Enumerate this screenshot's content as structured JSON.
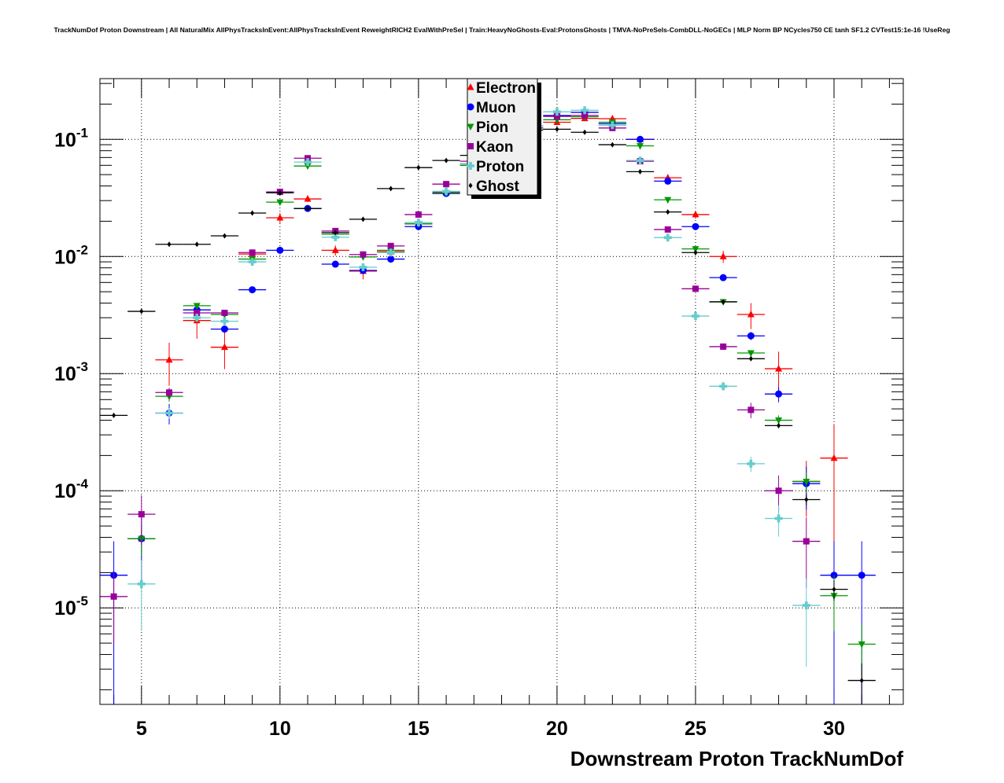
{
  "chart_data": {
    "type": "scatter",
    "title": "TrackNumDof Proton Downstream | All NaturalMix AllPhysTracksInEvent:AllPhysTracksInEvent ReweightRICH2 EvalWithPreSel | Train:HeavyNoGhosts-Eval:ProtonsGhosts | TMVA-NoPreSels-CombDLL-NoGECs | MLP Norm BP NCycles750 CE tanh SF1.2 CVTest15:1e-16 !UseReg",
    "xlabel": "Downstream Proton TrackNumDof",
    "ylabel": "",
    "xlim": [
      3.5,
      32.5
    ],
    "ylim": [
      1.5e-06,
      0.33
    ],
    "yscale": "log",
    "grid": true,
    "legend_placement": "top-center",
    "xticks": [
      {
        "value": 5,
        "label": "5"
      },
      {
        "value": 10,
        "label": "10"
      },
      {
        "value": 15,
        "label": "15"
      },
      {
        "value": 20,
        "label": "20"
      },
      {
        "value": 25,
        "label": "25"
      },
      {
        "value": 30,
        "label": "30"
      }
    ],
    "yticks": [
      {
        "value": 0.1,
        "base": "10",
        "exp": "-1"
      },
      {
        "value": 0.01,
        "base": "10",
        "exp": "-2"
      },
      {
        "value": 0.001,
        "base": "10",
        "exp": "-3"
      },
      {
        "value": 0.0001,
        "base": "10",
        "exp": "-4"
      },
      {
        "value": 1e-05,
        "base": "10",
        "exp": "-5"
      }
    ],
    "x": [
      4,
      5,
      6,
      7,
      8,
      9,
      10,
      11,
      12,
      13,
      14,
      15,
      16,
      17,
      18,
      19,
      20,
      21,
      22,
      23,
      24,
      25,
      26,
      27,
      28,
      29,
      30,
      31
    ],
    "series": [
      {
        "name": "Electron",
        "color": "#ff0000",
        "marker": "triangle-up",
        "values": [
          null,
          3.9e-05,
          0.00131,
          0.00284,
          0.00168,
          0.0105,
          0.0214,
          0.031,
          0.0113,
          0.0075,
          0.011,
          0.019,
          0.0355,
          0.062,
          0.09,
          0.125,
          0.14,
          0.151,
          0.15,
          0.1,
          0.047,
          0.0228,
          0.01,
          0.0032,
          0.0011,
          0.00012,
          0.00019,
          null
        ],
        "rel_err": [
          0,
          0,
          0.4,
          0.3,
          0.35,
          0.08,
          0.1,
          0.06,
          0.1,
          0.15,
          0.08,
          0.05,
          0.04,
          0.03,
          0.02,
          0.02,
          0.02,
          0.02,
          0.02,
          0.03,
          0.06,
          0.08,
          0.12,
          0.25,
          0.4,
          0.5,
          0.95,
          0
        ]
      },
      {
        "name": "Muon",
        "color": "#0000ff",
        "marker": "circle",
        "values": [
          1.9e-05,
          3.9e-05,
          0.00046,
          0.0035,
          0.0024,
          0.0052,
          0.0113,
          0.0257,
          0.0086,
          0.0076,
          0.0095,
          0.018,
          0.0345,
          0.06,
          0.09,
          0.13,
          0.16,
          0.17,
          0.136,
          0.1,
          0.044,
          0.018,
          0.0066,
          0.0021,
          0.00067,
          0.000115,
          1.9e-05,
          1.9e-05
        ],
        "rel_err": [
          0.95,
          0.6,
          0.2,
          0.05,
          0.06,
          0.04,
          0.03,
          0.02,
          0.03,
          0.03,
          0.03,
          0.02,
          0.02,
          0.01,
          0.01,
          0.01,
          0.01,
          0.01,
          0.01,
          0.01,
          0.02,
          0.03,
          0.05,
          0.08,
          0.15,
          0.4,
          0.95,
          0.95
        ]
      },
      {
        "name": "Pion",
        "color": "#009900",
        "marker": "triangle-down",
        "values": [
          null,
          3.9e-05,
          0.00064,
          0.0038,
          0.0032,
          0.0095,
          0.0291,
          0.0592,
          0.0155,
          0.0099,
          0.0113,
          0.019,
          0.035,
          0.06,
          0.09,
          0.13,
          0.147,
          0.156,
          0.14,
          0.088,
          0.0305,
          0.0116,
          0.0041,
          0.0015,
          0.0004,
          0.00012,
          1.27e-05,
          4.9e-06
        ],
        "rel_err": [
          0,
          0.3,
          0.1,
          0.03,
          0.03,
          0.02,
          0.01,
          0.01,
          0.02,
          0.02,
          0.02,
          0.01,
          0.01,
          0.01,
          0.01,
          0.01,
          0.01,
          0.01,
          0.01,
          0.01,
          0.01,
          0.02,
          0.03,
          0.05,
          0.1,
          0.2,
          0.5,
          0.5
        ]
      },
      {
        "name": "Kaon",
        "color": "#990099",
        "marker": "square",
        "values": [
          1.25e-05,
          6.3e-05,
          0.00069,
          0.0033,
          0.0033,
          0.0108,
          0.0356,
          0.069,
          0.0165,
          0.0104,
          0.0123,
          0.0228,
          0.0415,
          0.065,
          0.085,
          0.125,
          0.157,
          0.16,
          0.125,
          0.065,
          0.017,
          0.0053,
          0.0017,
          0.00049,
          0.0001,
          3.7e-05,
          null,
          null
        ],
        "rel_err": [
          0.6,
          0.45,
          0.1,
          0.04,
          0.04,
          0.03,
          0.02,
          0.01,
          0.02,
          0.02,
          0.02,
          0.02,
          0.01,
          0.01,
          0.01,
          0.01,
          0.01,
          0.01,
          0.01,
          0.01,
          0.02,
          0.04,
          0.06,
          0.15,
          0.35,
          0.6,
          0,
          0
        ]
      },
      {
        "name": "Proton",
        "color": "#66cccc",
        "marker": "cross",
        "values": [
          null,
          1.6e-05,
          0.00046,
          0.003,
          0.0028,
          0.009,
          null,
          0.064,
          0.0146,
          0.0081,
          0.0108,
          0.0195,
          0.036,
          0.062,
          0.09,
          0.13,
          0.172,
          0.177,
          0.132,
          0.066,
          0.0145,
          0.0031,
          0.00078,
          0.00017,
          5.8e-05,
          1.05e-05,
          null,
          null
        ],
        "rel_err": [
          0,
          0.6,
          0.1,
          0.03,
          0.03,
          0.02,
          0,
          0.01,
          0.02,
          0.02,
          0.02,
          0.01,
          0.01,
          0.01,
          0.01,
          0.01,
          0.01,
          0.01,
          0.01,
          0.01,
          0.02,
          0.04,
          0.08,
          0.15,
          0.3,
          0.7,
          0,
          0
        ]
      },
      {
        "name": "Ghost",
        "color": "#000000",
        "marker": "diamond",
        "values": [
          0.00044,
          0.0034,
          0.0127,
          0.0127,
          0.015,
          0.0235,
          0.035,
          0.0257,
          0.016,
          0.0208,
          0.038,
          0.0574,
          0.066,
          0.073,
          0.085,
          0.12,
          0.122,
          0.115,
          0.09,
          0.053,
          0.024,
          0.0108,
          0.0041,
          0.00134,
          0.00036,
          8.4e-05,
          1.44e-05,
          2.4e-06
        ],
        "rel_err": [
          0.02,
          0.01,
          0.01,
          0.01,
          0.01,
          0.01,
          0.01,
          0.01,
          0.01,
          0.01,
          0.01,
          0.01,
          0.01,
          0.01,
          0.01,
          0.01,
          0.01,
          0.01,
          0.01,
          0.01,
          0.01,
          0.01,
          0.02,
          0.03,
          0.05,
          0.1,
          0.2,
          0.4
        ]
      }
    ]
  }
}
